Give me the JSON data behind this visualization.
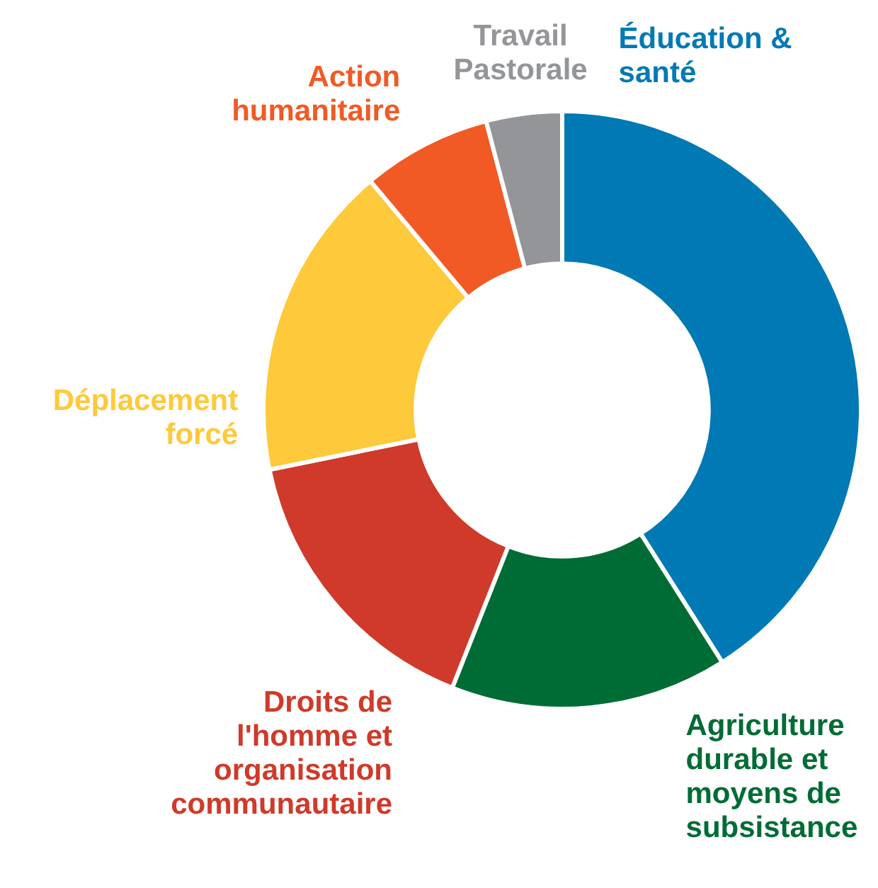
{
  "chart_data": {
    "type": "donut",
    "categories": [
      "Éducation & santé",
      "Agriculture durable et moyens de subsistance",
      "Droits de l'homme et organisation communautaire",
      "Déplacement forcé",
      "Action humanitaire",
      "Travail Pastorale"
    ],
    "values": [
      41,
      15,
      15.8,
      17.1,
      7,
      4.1
    ],
    "colors": [
      "#0079b4",
      "#006c35",
      "#cf3a2a",
      "#fec93a",
      "#f15a24",
      "#939598"
    ]
  }
}
